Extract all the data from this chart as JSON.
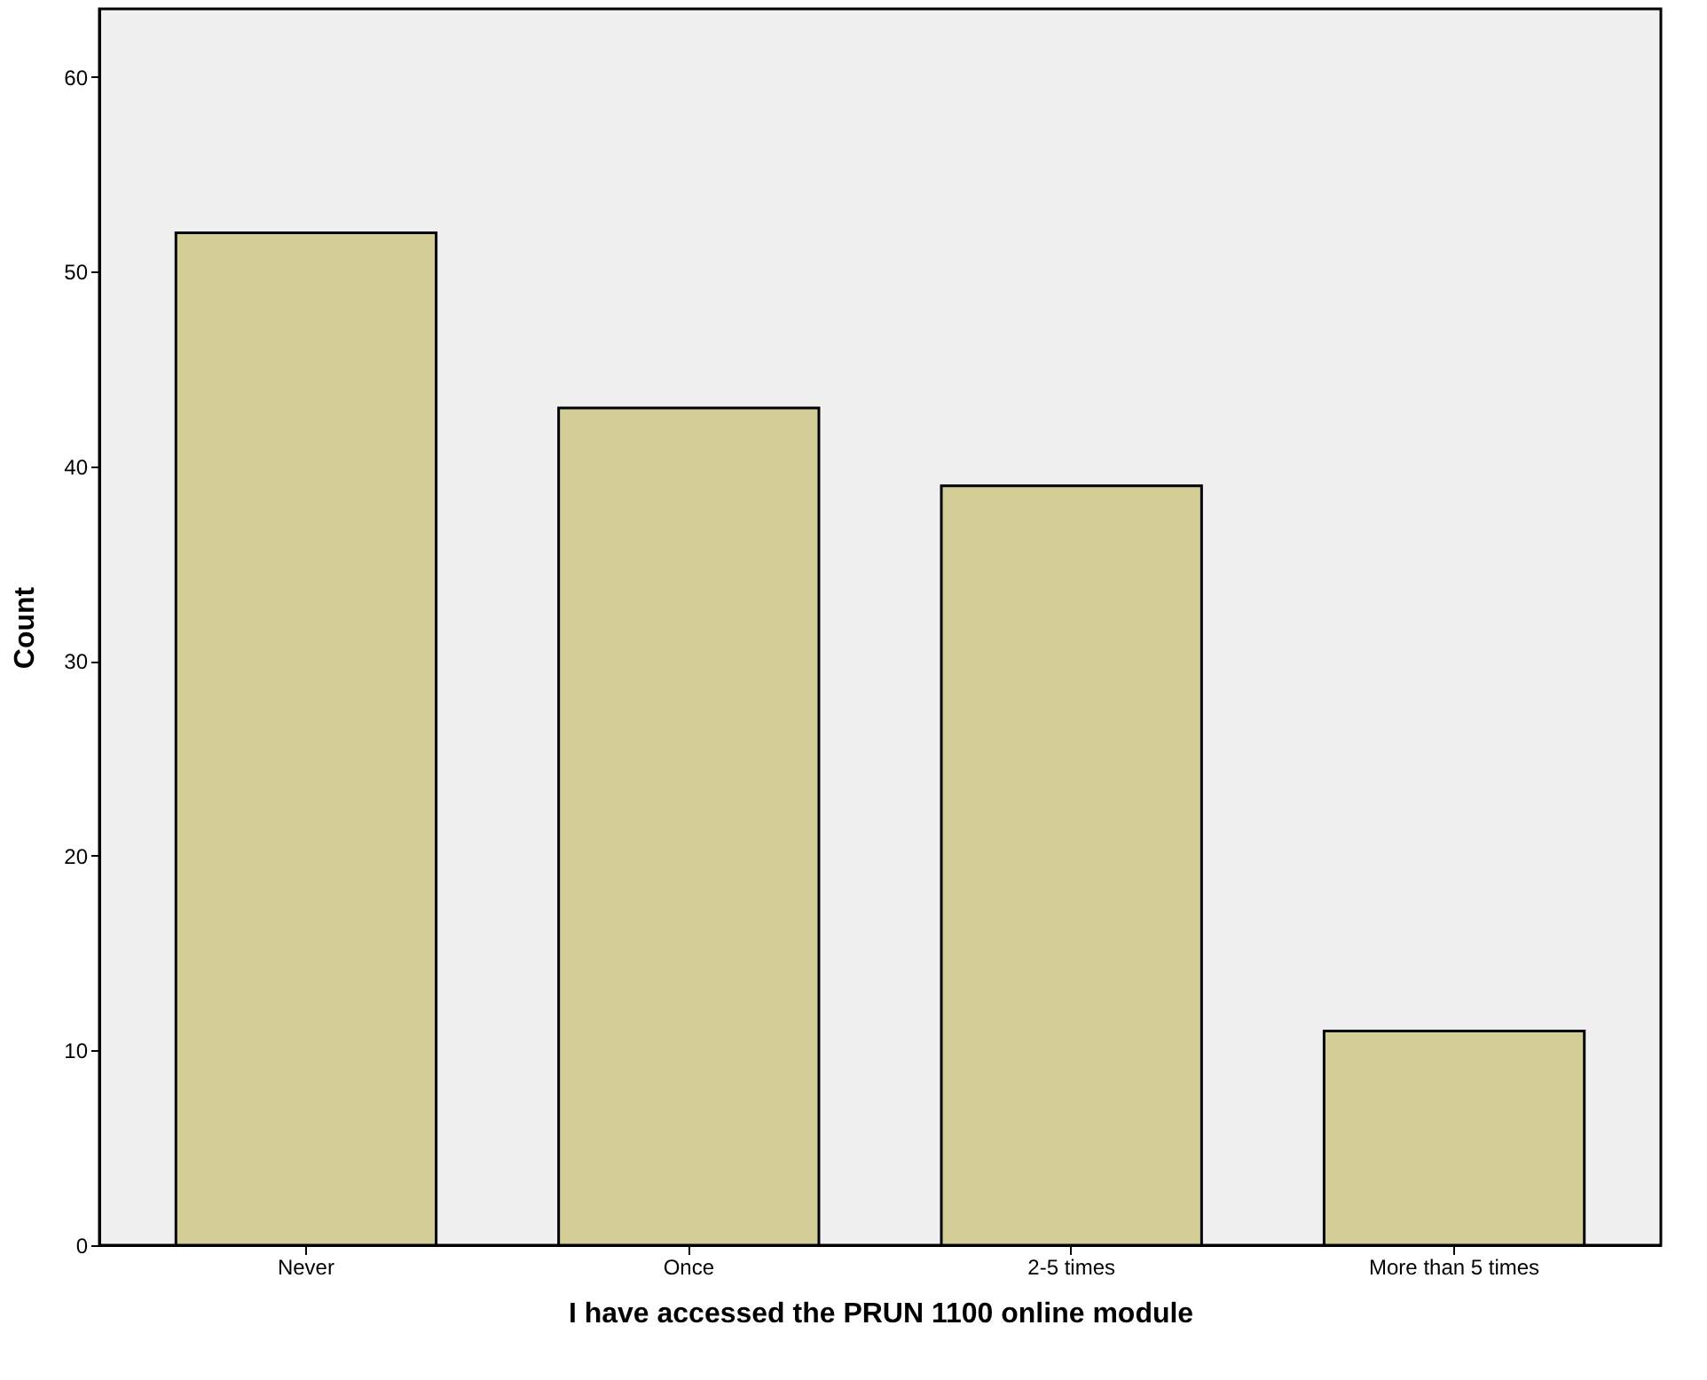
{
  "chart_data": {
    "type": "bar",
    "xlabel": "I have accessed the PRUN 1100 online module",
    "ylabel": "Count",
    "categories": [
      "Never",
      "Once",
      "2-5 times",
      "More than 5 times"
    ],
    "values": [
      52,
      43,
      39,
      11
    ],
    "color": "#d3ce97",
    "ylim": [
      0,
      63.5
    ],
    "yticks": [
      0,
      10,
      20,
      30,
      40,
      50,
      60
    ],
    "grid": false
  }
}
